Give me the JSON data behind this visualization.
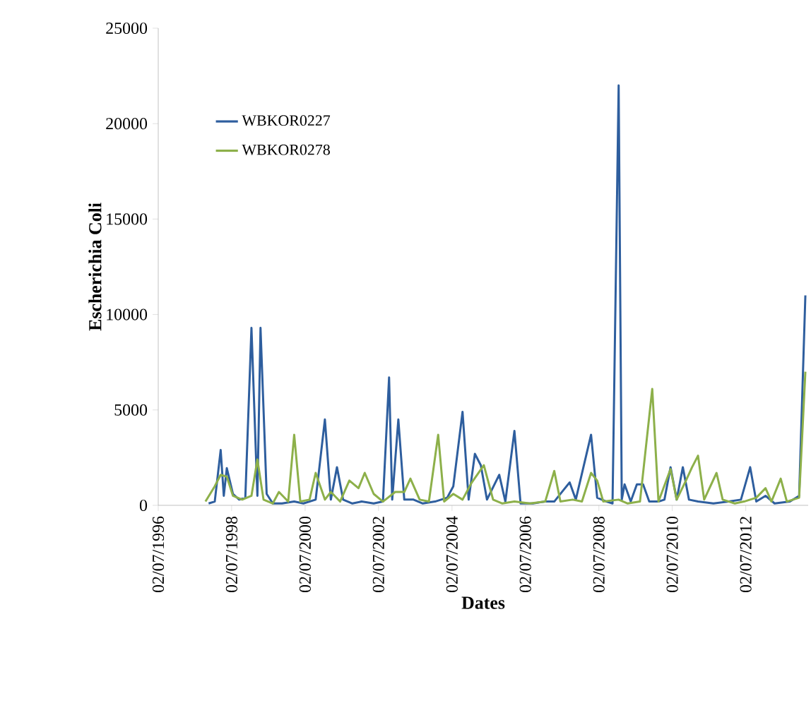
{
  "chart_data": {
    "type": "line",
    "xlabel": "Dates",
    "ylabel": "Escherichia Coli",
    "legend": "top left",
    "marker": "none",
    "line_style": "solid",
    "grid": false,
    "xlim": [
      "1996-07-02",
      "2014-03-15"
    ],
    "xticks": [
      {
        "value": "1996-07-02",
        "label": "02/07/1996"
      },
      {
        "value": "1998-07-02",
        "label": "02/07/1998"
      },
      {
        "value": "2000-07-02",
        "label": "02/07/2000"
      },
      {
        "value": "2002-07-02",
        "label": "02/07/2002"
      },
      {
        "value": "2004-07-02",
        "label": "02/07/2004"
      },
      {
        "value": "2006-07-02",
        "label": "02/07/2006"
      },
      {
        "value": "2008-07-02",
        "label": "02/07/2008"
      },
      {
        "value": "2010-07-02",
        "label": "02/07/2010"
      },
      {
        "value": "2012-07-02",
        "label": "02/07/2012"
      }
    ],
    "ylim": [
      0,
      25000
    ],
    "yticks": [
      0,
      5000,
      10000,
      15000,
      20000,
      25000
    ],
    "series": [
      {
        "name": "WBKOR0227",
        "color": "#2e5e9e",
        "x": [
          "1997-11",
          "1998-01",
          "1998-03",
          "1998-04",
          "1998-05",
          "1998-07",
          "1998-09",
          "1998-11",
          "1999-01",
          "1999-03",
          "1999-04",
          "1999-06",
          "1999-08",
          "1999-11",
          "2000-03",
          "2000-06",
          "2000-10",
          "2001-01",
          "2001-03",
          "2001-05",
          "2001-07",
          "2001-10",
          "2002-01",
          "2002-05",
          "2002-08",
          "2002-10",
          "2002-11",
          "2003-01",
          "2003-03",
          "2003-06",
          "2003-09",
          "2004-01",
          "2004-05",
          "2004-07",
          "2004-10",
          "2004-12",
          "2005-02",
          "2005-04",
          "2005-06",
          "2005-10",
          "2005-12",
          "2006-03",
          "2006-05",
          "2006-09",
          "2007-01",
          "2007-04",
          "2007-07",
          "2007-09",
          "2007-11",
          "2008-04",
          "2008-06",
          "2008-09",
          "2008-11",
          "2009-01",
          "2009-02",
          "2009-03",
          "2009-05",
          "2009-07",
          "2009-09",
          "2009-11",
          "2010-02",
          "2010-04",
          "2010-06",
          "2010-08",
          "2010-10",
          "2010-12",
          "2011-03",
          "2011-08",
          "2012-01",
          "2012-05",
          "2012-08",
          "2012-10",
          "2013-01",
          "2013-04",
          "2013-09",
          "2013-12",
          "2014-02"
        ],
        "values": [
          100,
          200,
          2900,
          500,
          1950,
          600,
          300,
          400,
          9300,
          500,
          9300,
          600,
          100,
          100,
          200,
          100,
          300,
          4500,
          300,
          2000,
          300,
          100,
          200,
          100,
          200,
          6700,
          300,
          4500,
          300,
          300,
          100,
          200,
          400,
          1000,
          4900,
          300,
          2700,
          2100,
          300,
          1600,
          200,
          3900,
          100,
          100,
          200,
          200,
          800,
          1200,
          300,
          3700,
          400,
          200,
          100,
          22000,
          300,
          1100,
          200,
          1100,
          1100,
          200,
          200,
          300,
          2000,
          300,
          2000,
          300,
          200,
          100,
          200,
          300,
          2000,
          200,
          500,
          100,
          200,
          500,
          11000
        ]
      },
      {
        "name": "WBKOR0278",
        "color": "#8db04a",
        "x": [
          "1997-10",
          "1998-01",
          "1998-03",
          "1998-05",
          "1998-07",
          "1998-10",
          "1999-01",
          "1999-03",
          "1999-05",
          "1999-08",
          "1999-10",
          "2000-01",
          "2000-03",
          "2000-05",
          "2000-08",
          "2000-10",
          "2001-01",
          "2001-03",
          "2001-06",
          "2001-09",
          "2001-12",
          "2002-02",
          "2002-05",
          "2002-08",
          "2002-12",
          "2003-03",
          "2003-05",
          "2003-08",
          "2003-11",
          "2004-02",
          "2004-04",
          "2004-07",
          "2004-10",
          "2005-01",
          "2005-05",
          "2005-08",
          "2005-11",
          "2006-03",
          "2006-08",
          "2007-01",
          "2007-04",
          "2007-06",
          "2007-10",
          "2008-01",
          "2008-04",
          "2008-06",
          "2008-08",
          "2009-01",
          "2009-04",
          "2009-08",
          "2009-12",
          "2010-02",
          "2010-06",
          "2010-08",
          "2010-11",
          "2011-01",
          "2011-03",
          "2011-05",
          "2011-09",
          "2011-11",
          "2012-03",
          "2012-06",
          "2012-10",
          "2013-01",
          "2013-03",
          "2013-06",
          "2013-08",
          "2013-12",
          "2014-02"
        ],
        "values": [
          200,
          1000,
          1600,
          1500,
          500,
          300,
          500,
          2400,
          300,
          100,
          700,
          200,
          3700,
          200,
          300,
          1700,
          300,
          700,
          200,
          1300,
          900,
          1700,
          600,
          200,
          700,
          700,
          1400,
          300,
          200,
          3700,
          200,
          600,
          300,
          1200,
          2100,
          300,
          100,
          200,
          100,
          200,
          1800,
          200,
          300,
          200,
          1700,
          1300,
          200,
          300,
          100,
          200,
          6100,
          200,
          1900,
          300,
          1300,
          2000,
          2600,
          300,
          1700,
          300,
          100,
          200,
          400,
          900,
          200,
          1400,
          200,
          400,
          7000
        ]
      }
    ]
  }
}
